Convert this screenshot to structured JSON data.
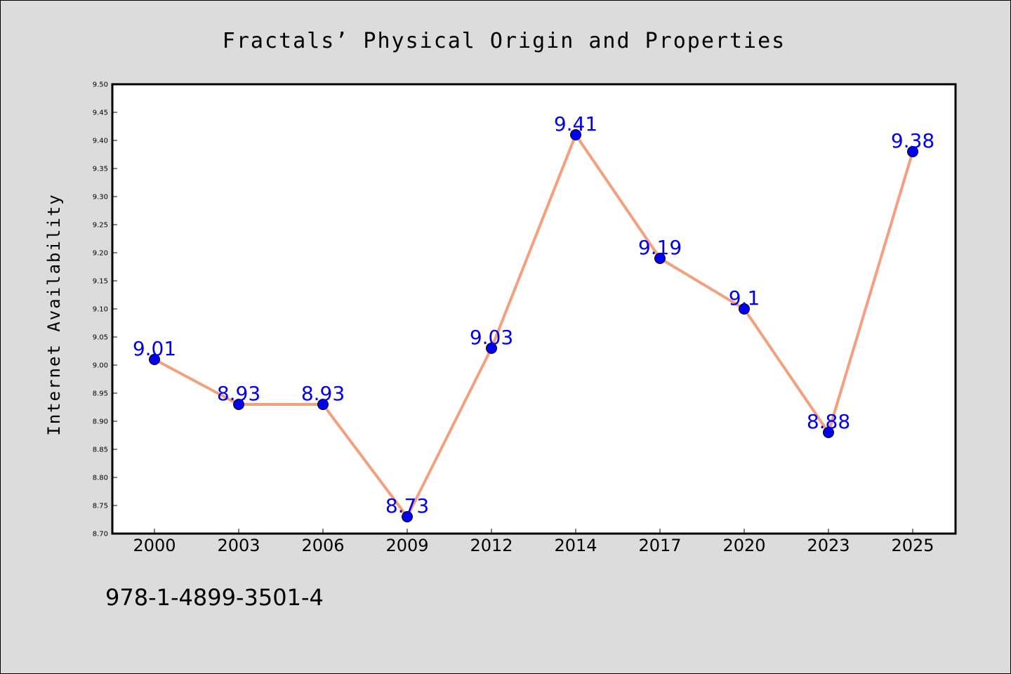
{
  "chart_data": {
    "type": "line",
    "title": "Fractals’ Physical Origin and Properties",
    "xlabel": "",
    "ylabel": "Internet Availability",
    "categories": [
      "2000",
      "2003",
      "2006",
      "2009",
      "2012",
      "2014",
      "2017",
      "2020",
      "2023",
      "2025"
    ],
    "values": [
      9.01,
      8.93,
      8.93,
      8.73,
      9.03,
      9.41,
      9.19,
      9.1,
      8.88,
      9.38
    ],
    "data_labels": [
      "9.01",
      "8.93",
      "8.93",
      "8.73",
      "9.03",
      "9.41",
      "9.19",
      "9.1",
      "8.88",
      "9.38"
    ],
    "ylim": [
      8.7,
      9.5
    ],
    "yticks": [
      "8.70",
      "8.75",
      "8.80",
      "8.85",
      "8.90",
      "8.95",
      "9.00",
      "9.05",
      "9.10",
      "9.15",
      "9.20",
      "9.25",
      "9.30",
      "9.35",
      "9.40",
      "9.45",
      "9.50"
    ],
    "grid": false,
    "legend": "none",
    "colors": {
      "line": "#f4a07e",
      "marker": "#0000ee",
      "label": "#0000ee",
      "plot_bg": "#ffffff",
      "page_bg": "#dcdcdc"
    }
  },
  "footer": {
    "isbn": "978-1-4899-3501-4"
  }
}
